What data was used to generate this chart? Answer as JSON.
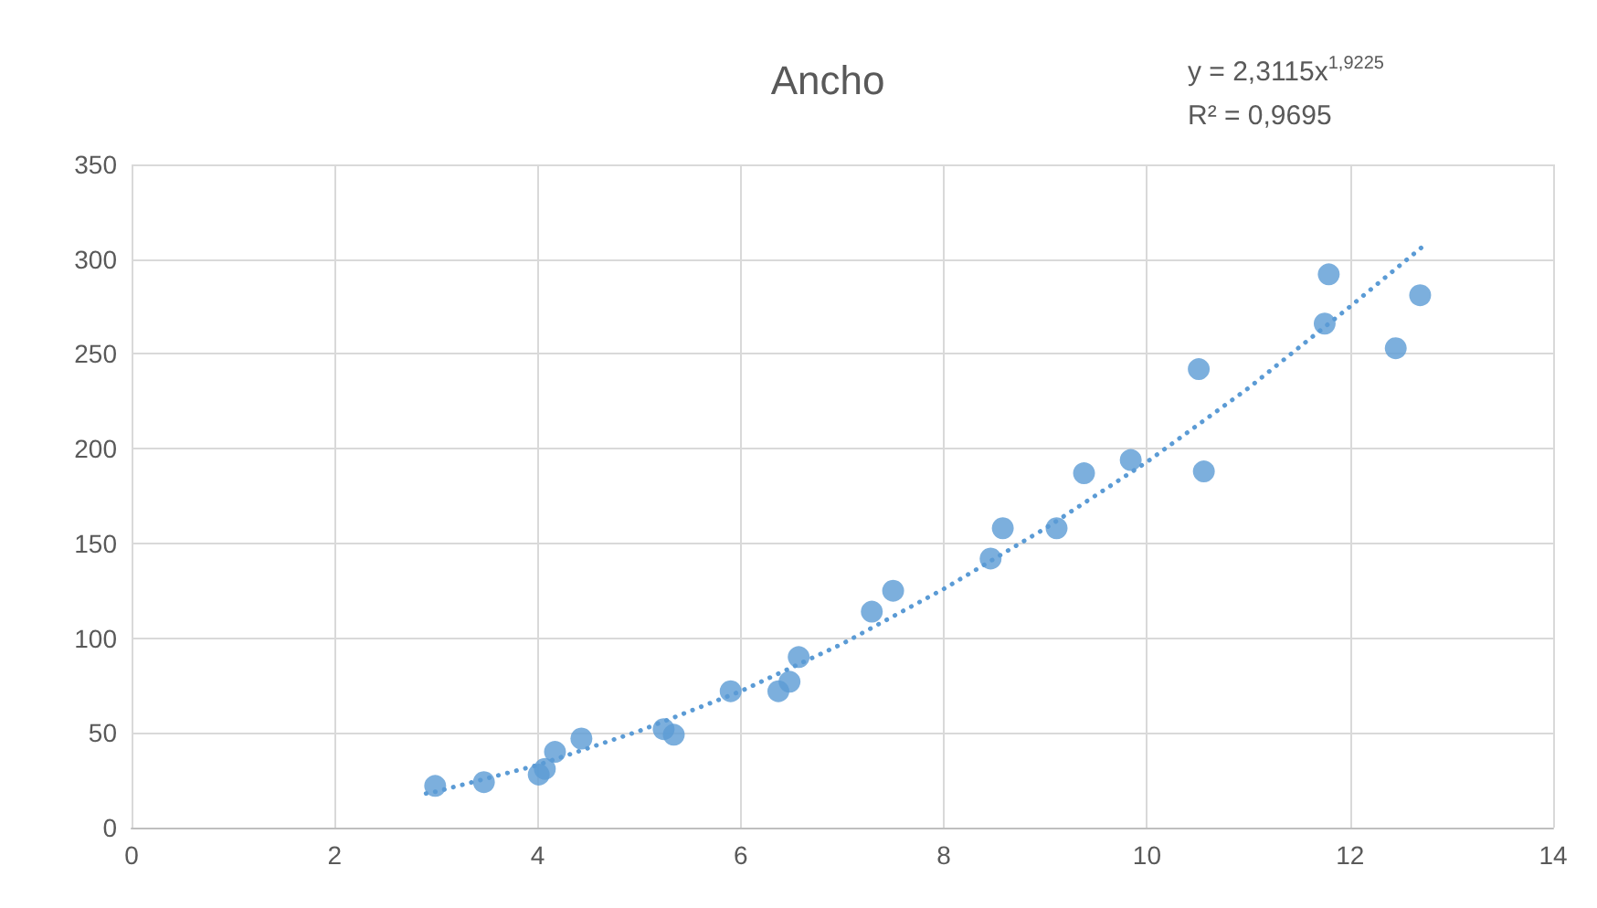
{
  "chart_data": {
    "type": "scatter",
    "title": "Ancho",
    "annotations": [
      "y = 2,3115x$^{1,9225}$",
      "R² = 0,9695"
    ],
    "xlim": [
      0,
      14
    ],
    "xticks": [
      0,
      2,
      4,
      6,
      8,
      10,
      12,
      14
    ],
    "ylim": [
      0,
      350
    ],
    "yticks": [
      0,
      50,
      100,
      150,
      200,
      250,
      300,
      350
    ],
    "grid": true,
    "marker": "circle",
    "series": [
      {
        "color": "#5b9bd5",
        "x": [
          2.99,
          3.47,
          4.01,
          4.07,
          4.17,
          4.43,
          5.24,
          5.34,
          5.9,
          6.37,
          6.48,
          6.57,
          7.29,
          7.5,
          8.46,
          8.58,
          9.11,
          9.38,
          9.84,
          10.51,
          10.56,
          11.75,
          11.79,
          12.45,
          12.69
        ],
        "values": [
          22,
          24,
          28,
          31,
          40,
          47,
          52,
          49,
          72,
          72,
          77,
          90,
          114,
          125,
          142,
          158,
          158,
          187,
          194,
          242,
          188,
          266,
          292,
          253,
          281
        ]
      },
      {
        "type": "line",
        "color": "#5b9bd5",
        "marker": "none",
        "line_style": "dotted",
        "x": [
          2.9,
          3,
          4,
          5,
          6,
          7,
          8,
          9,
          10,
          11,
          12,
          12.7
        ],
        "values": [
          18,
          19,
          33,
          51,
          72,
          97,
          126,
          158,
          193,
          232,
          275,
          306
        ]
      }
    ]
  }
}
